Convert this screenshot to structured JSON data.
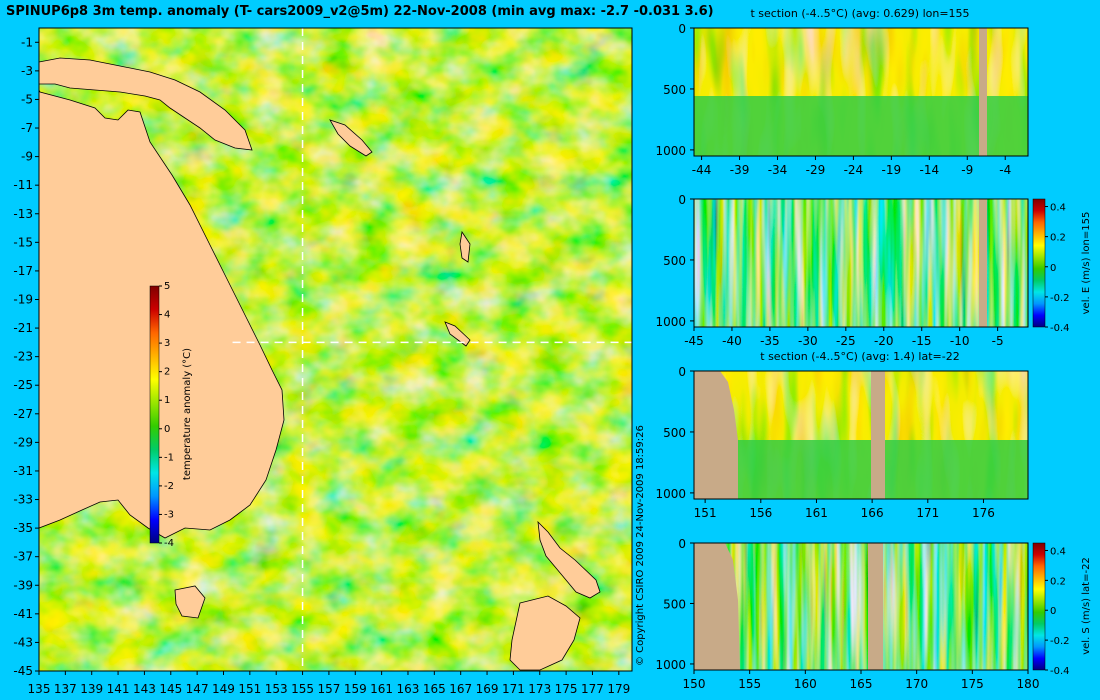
{
  "main_title": "SPINUP6p8 3m temp. anomaly (T- cars2009_v2@5m) 22-Nov-2008 (min avg max: -2.7 -0.031 3.6)",
  "copyright": "© Copyright CSIRO 2009   24-Nov-2009 18:59:26",
  "colors": {
    "background": "#00ccff",
    "land": "#ffcc99",
    "section_mask": "#c8aa88",
    "colormap": [
      "#000080",
      "#0000ff",
      "#0096ff",
      "#00e6e6",
      "#00cc66",
      "#33cc00",
      "#99e600",
      "#ffff00",
      "#ffb300",
      "#ff6600",
      "#cc0000",
      "#800000"
    ]
  },
  "chart_data": [
    {
      "type": "heatmap",
      "name": "map",
      "title": "SPINUP6p8 3m temp. anomaly (T- cars2009_v2@5m) 22-Nov-2008 (min avg max: -2.7 -0.031 3.6)",
      "xlim": [
        135,
        180
      ],
      "ylim": [
        -45,
        0
      ],
      "x_ticks": [
        135,
        137,
        139,
        141,
        143,
        145,
        147,
        149,
        151,
        153,
        155,
        157,
        159,
        161,
        163,
        165,
        167,
        169,
        171,
        173,
        175,
        177,
        179
      ],
      "y_ticks": [
        -1,
        -3,
        -5,
        -7,
        -9,
        -11,
        -13,
        -15,
        -17,
        -19,
        -21,
        -23,
        -25,
        -27,
        -29,
        -31,
        -33,
        -35,
        -37,
        -39,
        -41,
        -43,
        -45
      ],
      "section_lon": 155,
      "section_lat": -22,
      "colorbar": {
        "label": "temperature anomaly (°C)",
        "ticks": [
          5,
          4,
          3,
          2,
          1,
          0,
          -1,
          -2,
          -3,
          -4
        ],
        "range": [
          -4,
          5
        ]
      }
    },
    {
      "type": "heatmap",
      "name": "t-section-lon155",
      "title": "t section (-4..5°C) (avg: 0.629) lon=155",
      "xlim": [
        -45,
        -1
      ],
      "x_ticks": [
        -44,
        -39,
        -34,
        -29,
        -24,
        -19,
        -14,
        -9,
        -4
      ],
      "y_ticks": [
        0,
        500,
        1000
      ],
      "ylim": [
        1050,
        0
      ]
    },
    {
      "type": "heatmap",
      "name": "vel-e-section-lon155",
      "title": "",
      "xlim": [
        -45,
        -1
      ],
      "x_ticks": [
        -45,
        -40,
        -35,
        -30,
        -25,
        -20,
        -15,
        -10,
        -5
      ],
      "y_ticks": [
        0,
        500,
        1000
      ],
      "ylim": [
        1050,
        0
      ],
      "colorbar": {
        "label": "vel. E (m/s) lon=155",
        "ticks": [
          0.4,
          0.2,
          0,
          -0.2,
          -0.4
        ],
        "range": [
          -0.4,
          0.45
        ]
      }
    },
    {
      "type": "heatmap",
      "name": "t-section-lat-22",
      "title": "t section (-4..5°C) (avg: 1.4) lat=-22",
      "xlim": [
        150,
        180
      ],
      "x_ticks": [
        151,
        156,
        161,
        166,
        171,
        176
      ],
      "y_ticks": [
        0,
        500,
        1000
      ],
      "ylim": [
        1050,
        0
      ]
    },
    {
      "type": "heatmap",
      "name": "vel-s-section-lat-22",
      "title": "",
      "xlim": [
        150,
        180
      ],
      "x_ticks": [
        150,
        155,
        160,
        165,
        170,
        175,
        180
      ],
      "y_ticks": [
        0,
        500,
        1000
      ],
      "ylim": [
        1050,
        0
      ],
      "colorbar": {
        "label": "vel. S (m/s) lat=-22",
        "ticks": [
          0.4,
          0.2,
          0,
          -0.2,
          -0.4
        ],
        "range": [
          -0.4,
          0.45
        ]
      }
    }
  ]
}
